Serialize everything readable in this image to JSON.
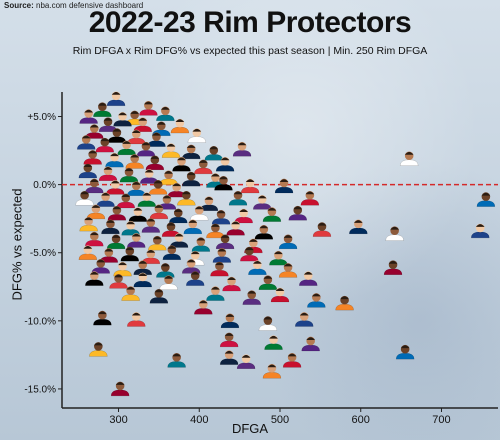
{
  "source": {
    "label": "Source:",
    "text": "nba.com defensive dashboard"
  },
  "chart_data": {
    "type": "scatter",
    "title": "2022-23 Rim Protectors",
    "subtitle": "Rim DFGA x Rim DFG% vs expected this past season | Min. 250 Rim DFGA",
    "xlabel": "DFGA",
    "ylabel": "DFG% vs expected",
    "xlim": [
      230,
      770
    ],
    "ylim": [
      -16.4,
      6.8
    ],
    "xticks": [
      300,
      400,
      500,
      600,
      700
    ],
    "yticks": [
      5.0,
      0.0,
      -5.0,
      -10.0,
      -15.0
    ],
    "ytick_labels": [
      "+5.0%",
      "0.0%",
      "-5.0%",
      "-10.0%",
      "-15.0%"
    ],
    "reference_line": {
      "y": 0.0,
      "style": "dashed",
      "color": "#d42a2a"
    },
    "marker": "player headshot",
    "points": [
      {
        "x": 297,
        "y": 6.3
      },
      {
        "x": 337,
        "y": 5.6
      },
      {
        "x": 280,
        "y": 5.5
      },
      {
        "x": 263,
        "y": 5.0
      },
      {
        "x": 320,
        "y": 4.9
      },
      {
        "x": 305,
        "y": 4.8
      },
      {
        "x": 358,
        "y": 5.2
      },
      {
        "x": 287,
        "y": 4.4
      },
      {
        "x": 330,
        "y": 4.4
      },
      {
        "x": 353,
        "y": 4.1
      },
      {
        "x": 376,
        "y": 4.3
      },
      {
        "x": 270,
        "y": 3.9
      },
      {
        "x": 298,
        "y": 3.6
      },
      {
        "x": 322,
        "y": 3.5
      },
      {
        "x": 347,
        "y": 3.3
      },
      {
        "x": 397,
        "y": 3.6
      },
      {
        "x": 260,
        "y": 3.1
      },
      {
        "x": 283,
        "y": 2.9
      },
      {
        "x": 310,
        "y": 2.7
      },
      {
        "x": 334,
        "y": 2.6
      },
      {
        "x": 365,
        "y": 2.5
      },
      {
        "x": 390,
        "y": 2.4
      },
      {
        "x": 418,
        "y": 2.3
      },
      {
        "x": 453,
        "y": 2.6
      },
      {
        "x": 268,
        "y": 2.0
      },
      {
        "x": 295,
        "y": 1.8
      },
      {
        "x": 320,
        "y": 1.7
      },
      {
        "x": 345,
        "y": 1.6
      },
      {
        "x": 378,
        "y": 1.5
      },
      {
        "x": 405,
        "y": 1.3
      },
      {
        "x": 432,
        "y": 1.5
      },
      {
        "x": 660,
        "y": 1.9
      },
      {
        "x": 262,
        "y": 1.0
      },
      {
        "x": 287,
        "y": 0.8
      },
      {
        "x": 313,
        "y": 0.7
      },
      {
        "x": 338,
        "y": 0.6
      },
      {
        "x": 362,
        "y": 0.5
      },
      {
        "x": 390,
        "y": 0.4
      },
      {
        "x": 420,
        "y": 0.3
      },
      {
        "x": 270,
        "y": -0.1
      },
      {
        "x": 296,
        "y": -0.2
      },
      {
        "x": 322,
        "y": -0.3
      },
      {
        "x": 349,
        "y": -0.2
      },
      {
        "x": 372,
        "y": -0.4
      },
      {
        "x": 430,
        "y": 0.1
      },
      {
        "x": 463,
        "y": -0.1
      },
      {
        "x": 505,
        "y": -0.1
      },
      {
        "x": 258,
        "y": -1.0
      },
      {
        "x": 284,
        "y": -1.1
      },
      {
        "x": 309,
        "y": -1.2
      },
      {
        "x": 335,
        "y": -1.1
      },
      {
        "x": 360,
        "y": -1.3
      },
      {
        "x": 384,
        "y": -1.0
      },
      {
        "x": 412,
        "y": -1.4
      },
      {
        "x": 448,
        "y": -1.0
      },
      {
        "x": 478,
        "y": -1.3
      },
      {
        "x": 537,
        "y": -1.0
      },
      {
        "x": 755,
        "y": -1.1
      },
      {
        "x": 272,
        "y": -2.0
      },
      {
        "x": 298,
        "y": -2.1
      },
      {
        "x": 324,
        "y": -2.2
      },
      {
        "x": 350,
        "y": -2.0
      },
      {
        "x": 374,
        "y": -2.3
      },
      {
        "x": 400,
        "y": -2.1
      },
      {
        "x": 427,
        "y": -2.4
      },
      {
        "x": 455,
        "y": -2.3
      },
      {
        "x": 490,
        "y": -2.2
      },
      {
        "x": 522,
        "y": -2.1
      },
      {
        "x": 263,
        "y": -2.9
      },
      {
        "x": 290,
        "y": -3.1
      },
      {
        "x": 315,
        "y": -3.2
      },
      {
        "x": 340,
        "y": -3.0
      },
      {
        "x": 365,
        "y": -3.3
      },
      {
        "x": 392,
        "y": -3.1
      },
      {
        "x": 420,
        "y": -3.4
      },
      {
        "x": 445,
        "y": -3.2
      },
      {
        "x": 480,
        "y": -3.5
      },
      {
        "x": 552,
        "y": -3.3
      },
      {
        "x": 597,
        "y": -3.1
      },
      {
        "x": 642,
        "y": -3.6
      },
      {
        "x": 748,
        "y": -3.4
      },
      {
        "x": 270,
        "y": -4.0
      },
      {
        "x": 297,
        "y": -4.2
      },
      {
        "x": 322,
        "y": -4.1
      },
      {
        "x": 348,
        "y": -4.3
      },
      {
        "x": 375,
        "y": -4.1
      },
      {
        "x": 402,
        "y": -4.4
      },
      {
        "x": 432,
        "y": -4.2
      },
      {
        "x": 467,
        "y": -4.5
      },
      {
        "x": 510,
        "y": -4.2
      },
      {
        "x": 262,
        "y": -5.0
      },
      {
        "x": 288,
        "y": -5.2
      },
      {
        "x": 314,
        "y": -5.1
      },
      {
        "x": 340,
        "y": -5.3
      },
      {
        "x": 366,
        "y": -5.0
      },
      {
        "x": 395,
        "y": -5.4
      },
      {
        "x": 428,
        "y": -5.2
      },
      {
        "x": 462,
        "y": -5.1
      },
      {
        "x": 498,
        "y": -5.4
      },
      {
        "x": 278,
        "y": -6.0
      },
      {
        "x": 305,
        "y": -6.2
      },
      {
        "x": 330,
        "y": -6.1
      },
      {
        "x": 358,
        "y": -6.3
      },
      {
        "x": 390,
        "y": -6.0
      },
      {
        "x": 425,
        "y": -6.2
      },
      {
        "x": 472,
        "y": -6.1
      },
      {
        "x": 510,
        "y": -6.3
      },
      {
        "x": 640,
        "y": -6.1
      },
      {
        "x": 270,
        "y": -6.9
      },
      {
        "x": 300,
        "y": -7.1
      },
      {
        "x": 330,
        "y": -7.0
      },
      {
        "x": 362,
        "y": -7.2
      },
      {
        "x": 395,
        "y": -6.9
      },
      {
        "x": 440,
        "y": -7.3
      },
      {
        "x": 485,
        "y": -7.2
      },
      {
        "x": 535,
        "y": -6.9
      },
      {
        "x": 315,
        "y": -8.0
      },
      {
        "x": 350,
        "y": -8.2
      },
      {
        "x": 420,
        "y": -8.0
      },
      {
        "x": 465,
        "y": -8.3
      },
      {
        "x": 500,
        "y": -8.1
      },
      {
        "x": 545,
        "y": -8.5
      },
      {
        "x": 580,
        "y": -8.7
      },
      {
        "x": 405,
        "y": -9.0
      },
      {
        "x": 280,
        "y": -9.8
      },
      {
        "x": 322,
        "y": -9.9
      },
      {
        "x": 438,
        "y": -10.0
      },
      {
        "x": 485,
        "y": -10.2
      },
      {
        "x": 530,
        "y": -9.9
      },
      {
        "x": 437,
        "y": -11.4
      },
      {
        "x": 492,
        "y": -11.6
      },
      {
        "x": 538,
        "y": -11.7
      },
      {
        "x": 275,
        "y": -12.1
      },
      {
        "x": 437,
        "y": -12.7
      },
      {
        "x": 372,
        "y": -12.9
      },
      {
        "x": 458,
        "y": -13.0
      },
      {
        "x": 515,
        "y": -12.9
      },
      {
        "x": 655,
        "y": -12.3
      },
      {
        "x": 490,
        "y": -13.7
      },
      {
        "x": 302,
        "y": -15.0
      }
    ]
  }
}
